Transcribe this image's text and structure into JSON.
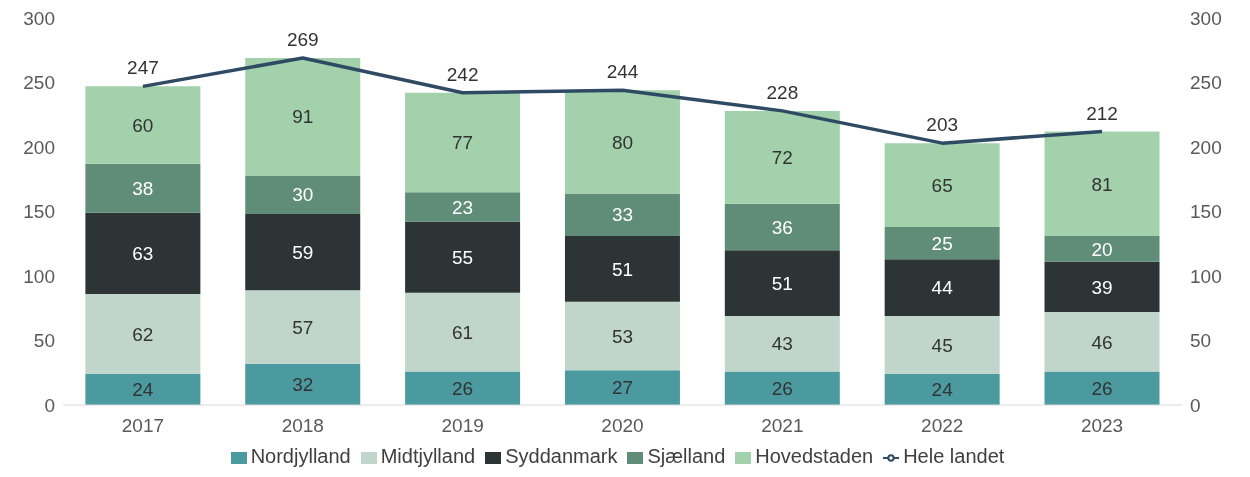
{
  "chart_data": {
    "type": "bar",
    "stacked": true,
    "categories": [
      "2017",
      "2018",
      "2019",
      "2020",
      "2021",
      "2022",
      "2023"
    ],
    "series": [
      {
        "name": "Nordjylland",
        "color": "#4a9aa0",
        "values": [
          24,
          32,
          26,
          27,
          26,
          24,
          26
        ]
      },
      {
        "name": "Midtjylland",
        "color": "#c0d6cb",
        "values": [
          62,
          57,
          61,
          53,
          43,
          45,
          46
        ]
      },
      {
        "name": "Syddanmark",
        "color": "#2d3436",
        "values": [
          63,
          59,
          55,
          51,
          51,
          44,
          39
        ]
      },
      {
        "name": "Sjælland",
        "color": "#5f8d78",
        "values": [
          38,
          30,
          23,
          33,
          36,
          25,
          20
        ]
      },
      {
        "name": "Hovedstaden",
        "color": "#a3d1ab",
        "values": [
          60,
          91,
          77,
          80,
          72,
          65,
          81
        ]
      },
      {
        "name": "Hele landet",
        "type": "line",
        "color": "#2f4b63",
        "values": [
          247,
          269,
          242,
          244,
          228,
          203,
          212
        ]
      }
    ],
    "ylim": [
      0,
      300
    ],
    "yticks": [
      0,
      50,
      100,
      150,
      200,
      250,
      300
    ],
    "y2lim": [
      0,
      300
    ],
    "y2ticks": [
      0,
      50,
      100,
      150,
      200,
      250,
      300
    ],
    "data_labels": true,
    "grid": false,
    "legend": "bottom",
    "marker": "none"
  }
}
